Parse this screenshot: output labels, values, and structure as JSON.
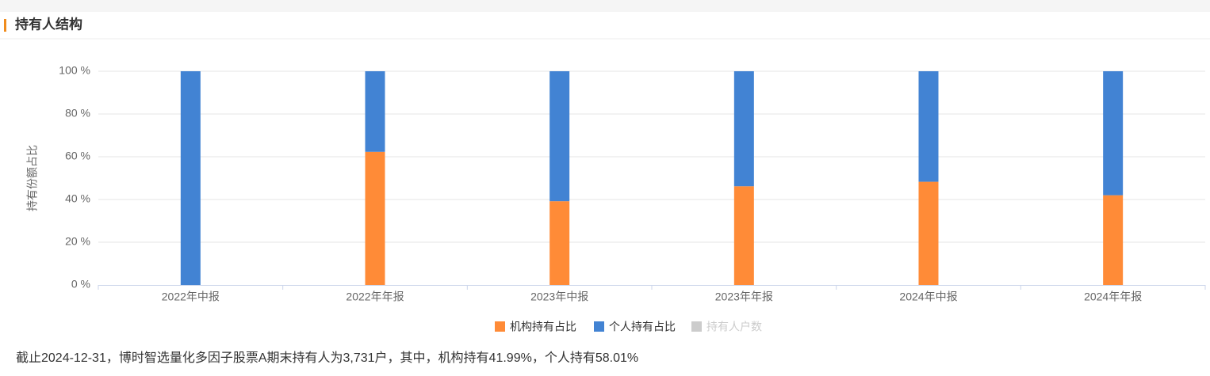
{
  "chart_data": {
    "type": "stacked_bar",
    "title": "持有人结构",
    "y_label": "持有份额占比",
    "categories": [
      "2022年中报",
      "2022年年报",
      "2023年中报",
      "2023年年报",
      "2024年中报",
      "2024年年报"
    ],
    "series": [
      {
        "name": "机构持有占比",
        "color": "#ff8b37",
        "values": [
          0,
          62.3,
          39.2,
          46.2,
          48.3,
          41.99
        ],
        "visible": true
      },
      {
        "name": "个人持有占比",
        "color": "#4283d3",
        "values": [
          100,
          37.7,
          60.8,
          53.8,
          51.7,
          58.01
        ],
        "visible": true
      },
      {
        "name": "持有人户数",
        "color": "#cccccc",
        "values": [
          null,
          null,
          null,
          null,
          null,
          null
        ],
        "visible": false
      }
    ],
    "ylim": [
      0,
      100
    ],
    "yticks": [
      {
        "value": 0,
        "label": "0 %"
      },
      {
        "value": 20,
        "label": "20 %"
      },
      {
        "value": 40,
        "label": "40 %"
      },
      {
        "value": 60,
        "label": "60 %"
      },
      {
        "value": 80,
        "label": "80 %"
      },
      {
        "value": 100,
        "label": "100 %"
      }
    ],
    "grid": true,
    "note": "截止2024-12-31，博时智选量化多因子股票A期末持有人为3,731户，其中，机构持有41.99%，个人持有58.01%"
  }
}
